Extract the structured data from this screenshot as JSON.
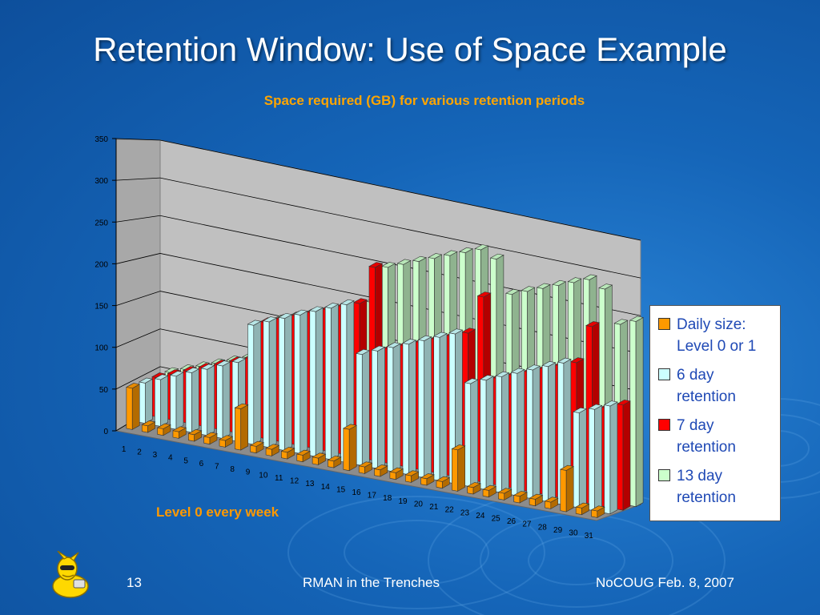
{
  "slide": {
    "title": "Retention Window: Use of Space Example",
    "slide_number": "13",
    "footer_center": "RMAN in the Trenches",
    "footer_right": "NoCOUG Feb. 8, 2007",
    "mascot_icon": "yellow-cartoon-mascot-icon"
  },
  "chart_data": {
    "type": "bar",
    "subtype": "3d-clustered-column",
    "title": "Space required (GB) for various retention periods",
    "annotation": "Level 0 every week",
    "xlabel": "",
    "ylabel": "",
    "ylim": [
      0,
      350
    ],
    "yticks": [
      0,
      50,
      100,
      150,
      200,
      250,
      300,
      350
    ],
    "grid": true,
    "legend_position": "right",
    "categories": [
      "1",
      "2",
      "3",
      "4",
      "5",
      "6",
      "7",
      "8",
      "9",
      "10",
      "11",
      "12",
      "13",
      "14",
      "15",
      "16",
      "17",
      "18",
      "19",
      "20",
      "21",
      "22",
      "23",
      "24",
      "25",
      "26",
      "27",
      "28",
      "29",
      "30",
      "31"
    ],
    "series": [
      {
        "name": "Daily size: Level 0 or 1",
        "color": "#ff9900",
        "values": [
          50,
          8,
          8,
          8,
          8,
          8,
          8,
          50,
          8,
          8,
          8,
          8,
          8,
          8,
          50,
          8,
          8,
          8,
          8,
          8,
          8,
          50,
          8,
          8,
          8,
          8,
          8,
          8,
          50,
          8,
          8
        ]
      },
      {
        "name": "6 day retention",
        "color": "#ccffff",
        "values": [
          50,
          58,
          66,
          74,
          82,
          90,
          98,
          148,
          156,
          164,
          172,
          180,
          188,
          196,
          138,
          146,
          154,
          162,
          170,
          178,
          186,
          128,
          136,
          144,
          152,
          160,
          168,
          176,
          118,
          126,
          134
        ]
      },
      {
        "name": "7 day retention",
        "color": "#ff0000",
        "values": [
          50,
          58,
          66,
          74,
          82,
          90,
          98,
          148,
          156,
          164,
          172,
          180,
          188,
          196,
          246,
          146,
          154,
          162,
          170,
          178,
          186,
          236,
          136,
          144,
          152,
          160,
          168,
          176,
          226,
          126,
          134
        ]
      },
      {
        "name": "13 day retention",
        "color": "#ccffcc",
        "values": [
          50,
          58,
          66,
          74,
          82,
          90,
          98,
          148,
          156,
          164,
          172,
          180,
          188,
          196,
          246,
          254,
          262,
          270,
          278,
          286,
          294,
          286,
          244,
          252,
          260,
          268,
          276,
          284,
          276,
          234,
          242
        ]
      }
    ]
  }
}
